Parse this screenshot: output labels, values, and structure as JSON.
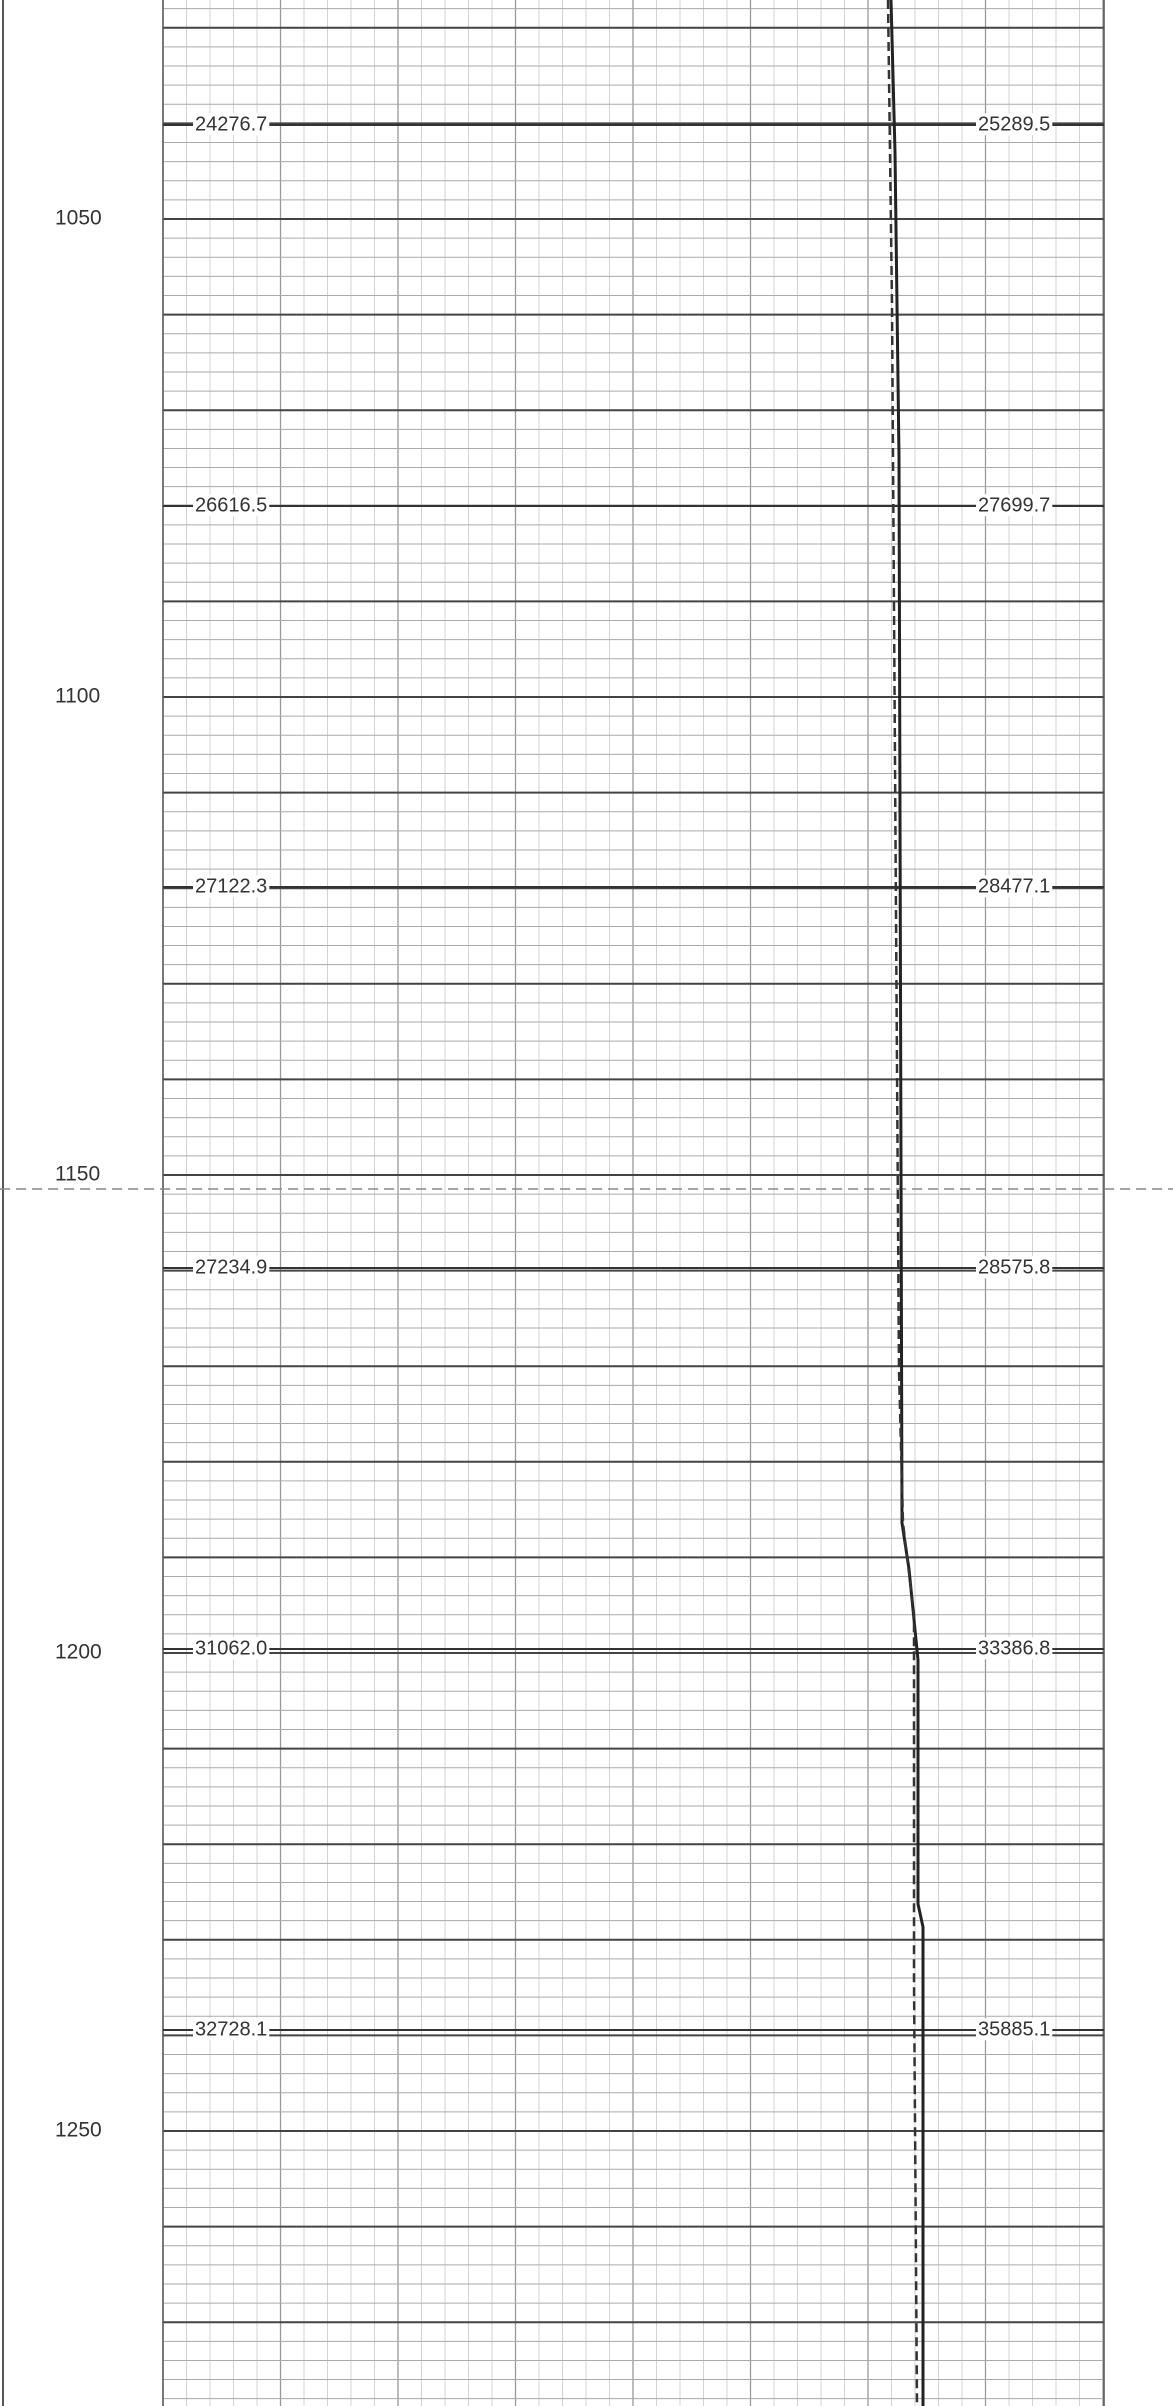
{
  "depth_labels": [
    1050,
    1100,
    1150,
    1200,
    1250
  ],
  "annotations": [
    {
      "left": "24276.7",
      "right": "25289.5"
    },
    {
      "left": "26616.5",
      "right": "27699.7"
    },
    {
      "left": "27122.3",
      "right": "28477.1"
    },
    {
      "left": "27234.9",
      "right": "28575.8"
    },
    {
      "left": "31062.0",
      "right": "33386.8"
    },
    {
      "left": "32728.1",
      "right": "35885.1"
    }
  ]
}
